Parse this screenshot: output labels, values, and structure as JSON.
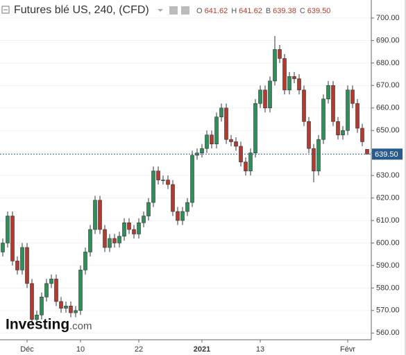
{
  "chart_data": {
    "type": "candlestick",
    "title": "Futures blé US, 240, (CFD)",
    "ohlc": [
      {
        "key": "O",
        "value": "641.62"
      },
      {
        "key": "H",
        "value": "641.62"
      },
      {
        "key": "B",
        "value": "639.38"
      },
      {
        "key": "C",
        "value": "639.50"
      }
    ],
    "brand": [
      "Investing",
      ".com"
    ],
    "categories": [
      null,
      null,
      null,
      null,
      null,
      "Déc",
      null,
      null,
      null,
      null,
      null,
      null,
      null,
      null,
      null,
      null,
      "10",
      null,
      null,
      null,
      null,
      null,
      null,
      null,
      null,
      null,
      null,
      null,
      "22",
      null,
      null,
      null,
      null,
      null,
      null,
      null,
      null,
      null,
      null,
      null,
      null,
      "2021",
      null,
      null,
      null,
      null,
      null,
      null,
      null,
      null,
      null,
      null,
      null,
      "13",
      null,
      null,
      null,
      null,
      null,
      null,
      null,
      null,
      null,
      null,
      null,
      null,
      null,
      null,
      null,
      null,
      null,
      "Févr",
      null,
      null,
      null,
      null
    ],
    "open": [
      596,
      600,
      612,
      592,
      588,
      598,
      582,
      566,
      568,
      576,
      582,
      584,
      574,
      571,
      572,
      569,
      570,
      588,
      596,
      606,
      619,
      606,
      598,
      602,
      600,
      603,
      609,
      606,
      604,
      609,
      612,
      618,
      632,
      628,
      628,
      626,
      614,
      610,
      614,
      618,
      639,
      640,
      642,
      648,
      644,
      656,
      660,
      646,
      645,
      643,
      636,
      632,
      640,
      662,
      668,
      660,
      672,
      686,
      682,
      668,
      674,
      673,
      668,
      654,
      642,
      632,
      646,
      664,
      670,
      654,
      648,
      650,
      668,
      662,
      651,
      641.62
    ],
    "high": [
      602,
      614,
      614,
      594,
      600,
      600,
      584,
      570,
      578,
      584,
      586,
      586,
      576,
      574,
      574,
      572,
      590,
      598,
      608,
      621,
      621,
      608,
      604,
      604,
      605,
      611,
      611,
      608,
      611,
      614,
      620,
      634,
      634,
      630,
      630,
      628,
      616,
      616,
      620,
      641,
      642,
      644,
      650,
      650,
      658,
      662,
      662,
      648,
      647,
      645,
      638,
      642,
      664,
      670,
      670,
      674,
      692,
      688,
      684,
      676,
      676,
      675,
      670,
      656,
      644,
      648,
      666,
      672,
      672,
      656,
      652,
      670,
      670,
      664,
      653,
      641.62
    ],
    "low": [
      594,
      598,
      590,
      586,
      586,
      580,
      564,
      564,
      566,
      574,
      580,
      572,
      569,
      569,
      567,
      567,
      568,
      586,
      594,
      604,
      604,
      596,
      596,
      598,
      598,
      601,
      604,
      602,
      602,
      607,
      610,
      616,
      626,
      626,
      624,
      612,
      608,
      608,
      612,
      616,
      637,
      638,
      640,
      642,
      642,
      654,
      644,
      643,
      641,
      634,
      630,
      630,
      638,
      660,
      658,
      658,
      670,
      680,
      666,
      666,
      671,
      666,
      652,
      640,
      627,
      630,
      644,
      662,
      652,
      646,
      646,
      648,
      660,
      649,
      643,
      639.38
    ],
    "close": [
      600,
      612,
      592,
      588,
      598,
      582,
      566,
      568,
      576,
      582,
      584,
      574,
      571,
      572,
      569,
      570,
      588,
      596,
      606,
      619,
      606,
      598,
      602,
      600,
      603,
      609,
      606,
      604,
      609,
      612,
      618,
      632,
      628,
      628,
      626,
      614,
      610,
      614,
      618,
      639,
      640,
      642,
      648,
      644,
      656,
      660,
      646,
      645,
      643,
      636,
      632,
      640,
      662,
      668,
      660,
      672,
      686,
      682,
      668,
      674,
      673,
      668,
      654,
      642,
      632,
      646,
      664,
      670,
      654,
      648,
      650,
      668,
      662,
      651,
      645,
      639.5
    ],
    "up_color": "#2f8f5b",
    "down_color": "#b23a2e",
    "ylim": [
      557,
      708
    ],
    "yticks": [
      {
        "value": 560,
        "label": "560.00"
      },
      {
        "value": 570,
        "label": "570.00"
      },
      {
        "value": 580,
        "label": "580.00"
      },
      {
        "value": 590,
        "label": "590.00"
      },
      {
        "value": 600,
        "label": "600.00"
      },
      {
        "value": 610,
        "label": "610.00"
      },
      {
        "value": 620,
        "label": "620.00"
      },
      {
        "value": 630,
        "label": "630.00"
      },
      {
        "value": 640,
        "label": "640.00"
      },
      {
        "value": 650,
        "label": "650.00"
      },
      {
        "value": 660,
        "label": "660.00"
      },
      {
        "value": 670,
        "label": "670.00"
      },
      {
        "value": 680,
        "label": "680.00"
      },
      {
        "value": 690,
        "label": "690.00"
      },
      {
        "value": 700,
        "label": "700.00"
      }
    ],
    "grid": true
  }
}
